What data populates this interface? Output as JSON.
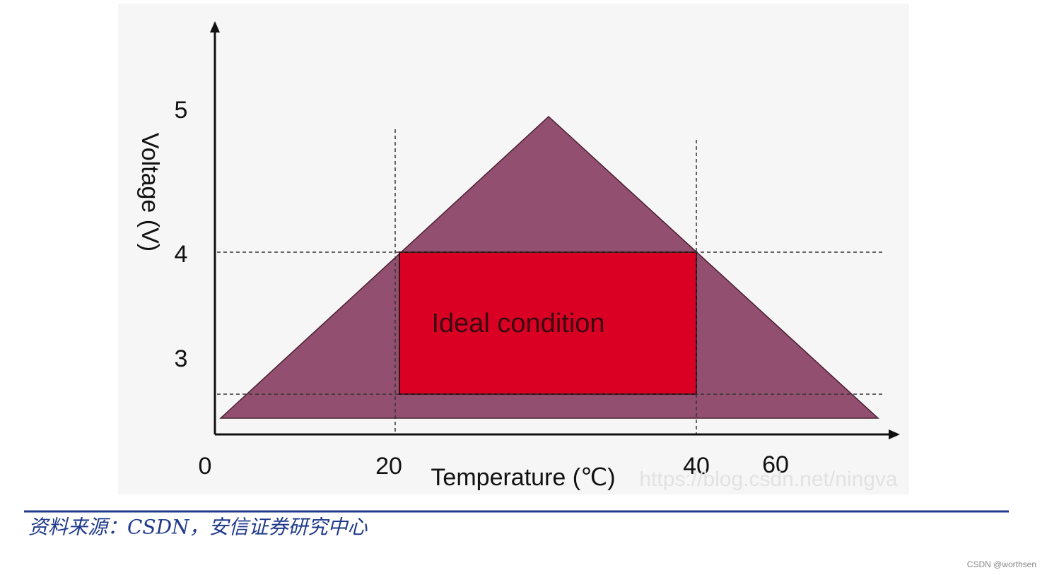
{
  "y_axis": {
    "label": "Voltage (V)",
    "ticks": [
      "5",
      "4",
      "3"
    ]
  },
  "x_axis": {
    "label": "Temperature (℃)",
    "ticks": [
      "0",
      "20",
      "40",
      "60"
    ]
  },
  "region_label": "Ideal condition",
  "watermark": "https://blog.csdn.net/ningva",
  "source": "资料来源：CSDN，安信证券研究中心",
  "credit": "CSDN @worthsen"
}
